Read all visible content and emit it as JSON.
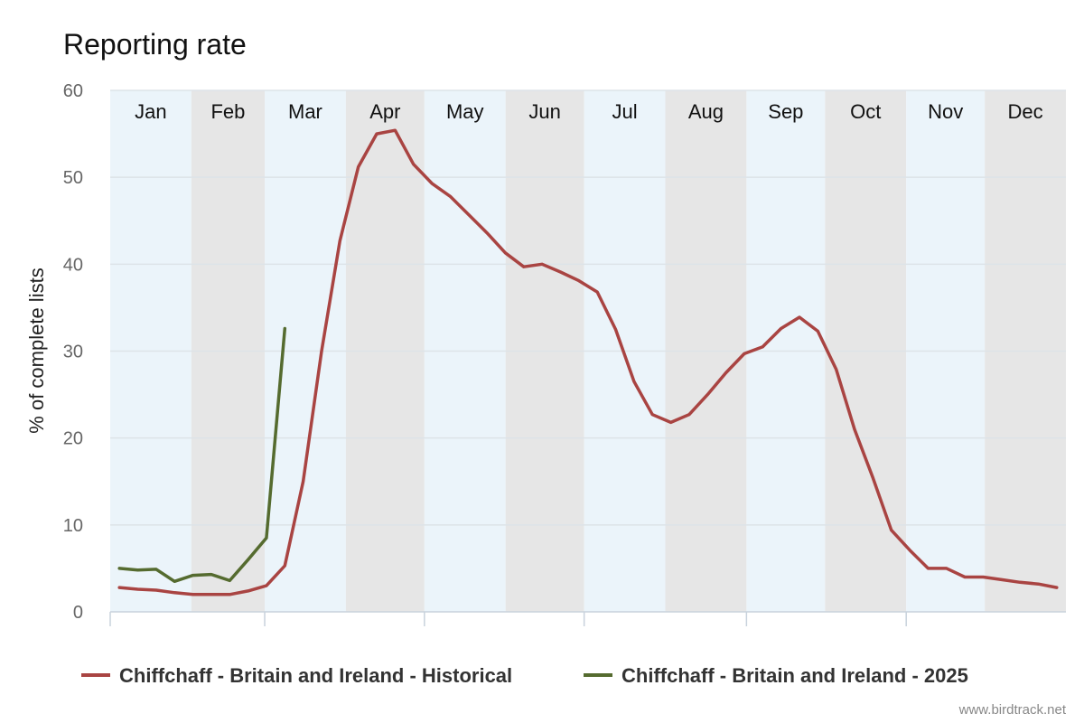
{
  "chart_data": {
    "type": "line",
    "title": "Reporting rate",
    "ylabel": "% of complete lists",
    "xlabel": "",
    "ylim": [
      0,
      60
    ],
    "yticks": [
      0,
      10,
      20,
      30,
      40,
      50,
      60
    ],
    "grid": true,
    "legend_position": "bottom",
    "months": [
      "Jan",
      "Feb",
      "Mar",
      "Apr",
      "May",
      "Jun",
      "Jul",
      "Aug",
      "Sep",
      "Oct",
      "Nov",
      "Dec"
    ],
    "month_band_colors": [
      "#ebf4fa",
      "#e6e6e6"
    ],
    "x_unit": "week of year",
    "series": [
      {
        "name": "Chiffchaff - Britain and Ireland - Historical",
        "color": "#a94442",
        "x": [
          1,
          2,
          3,
          4,
          5,
          6,
          7,
          8,
          9,
          10,
          11,
          12,
          13,
          14,
          15,
          16,
          17,
          18,
          19,
          20,
          21,
          22,
          23,
          24,
          25,
          26,
          27,
          28,
          29,
          30,
          31,
          32,
          33,
          34,
          35,
          36,
          37,
          38,
          39,
          40,
          41,
          42,
          43,
          44,
          45,
          46,
          47,
          48,
          49,
          50,
          51,
          52
        ],
        "values": [
          2.8,
          2.6,
          2.5,
          2.2,
          2.0,
          2.0,
          2.0,
          2.4,
          3.0,
          5.3,
          15.0,
          30.0,
          42.7,
          51.2,
          55.0,
          55.4,
          51.5,
          49.3,
          47.8,
          45.7,
          43.6,
          41.3,
          39.7,
          40.0,
          39.1,
          38.1,
          36.8,
          32.5,
          26.5,
          22.7,
          21.8,
          22.7,
          25.0,
          27.5,
          29.7,
          30.5,
          32.6,
          33.9,
          32.3,
          27.9,
          21.0,
          15.4,
          9.4,
          7.1,
          5.0,
          5.0,
          4.0,
          4.0,
          3.7,
          3.4,
          3.2,
          2.8
        ]
      },
      {
        "name": "Chiffchaff - Britain and Ireland - 2025",
        "color": "#556b2f",
        "x": [
          1,
          2,
          3,
          4,
          5,
          6,
          7,
          8,
          9,
          10
        ],
        "values": [
          5.0,
          4.8,
          4.9,
          3.5,
          4.2,
          4.3,
          3.6,
          6.0,
          8.5,
          32.6
        ]
      }
    ],
    "credit": "www.birdtrack.net"
  }
}
